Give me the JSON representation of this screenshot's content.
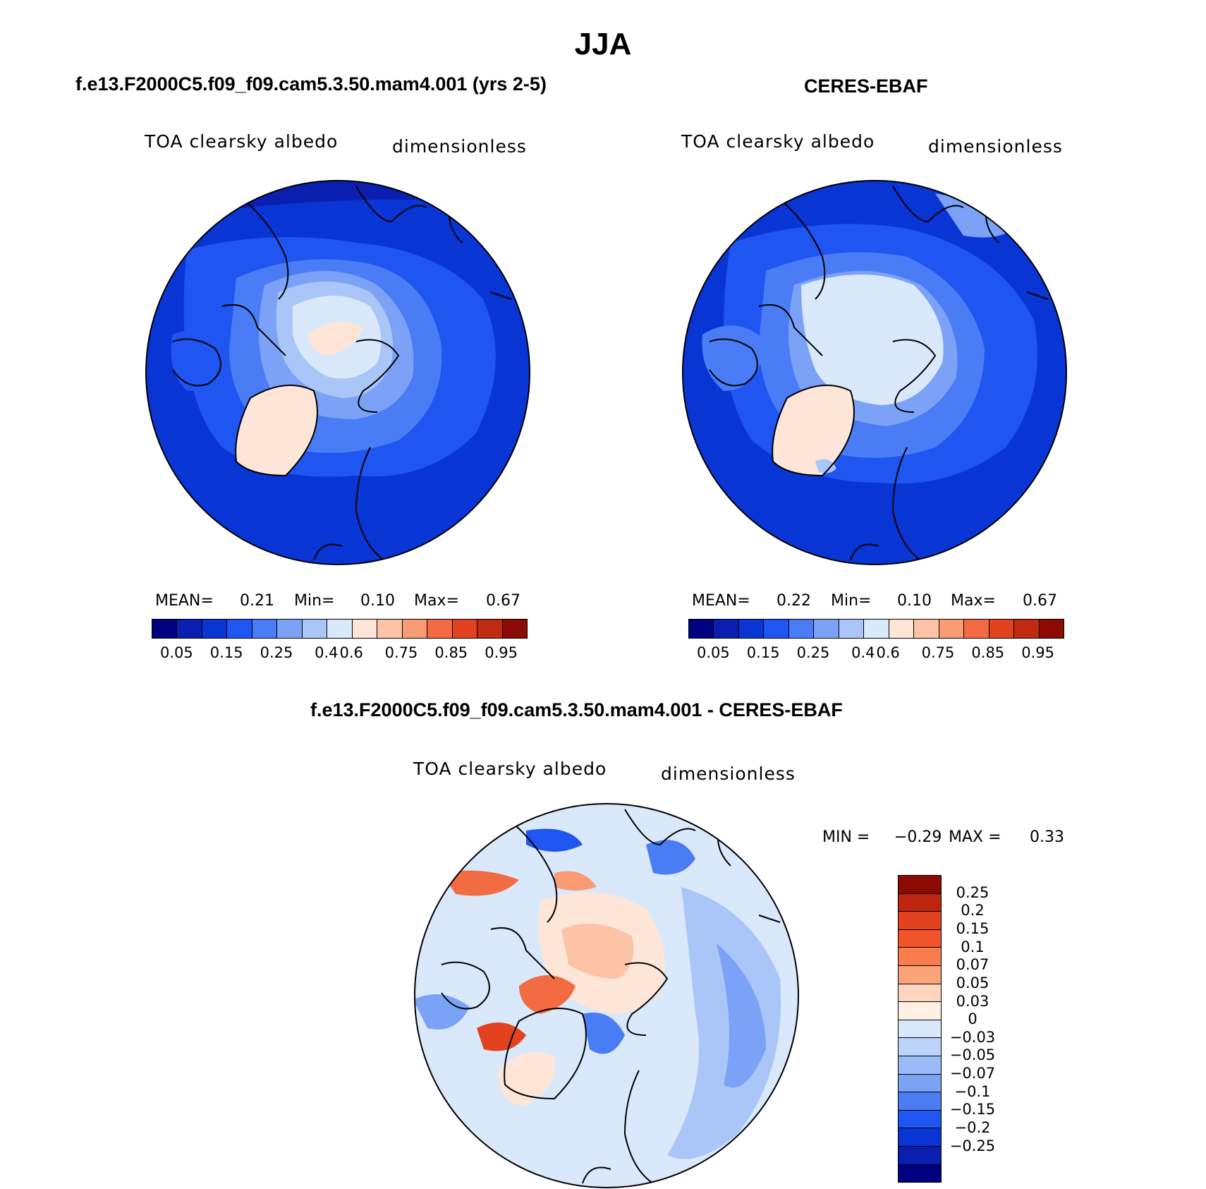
{
  "title": "JJA",
  "panels": [
    {
      "id": "model",
      "title": "f.e13.F2000C5.f09_f09.cam5.3.50.mam4.001 (yrs 2-5)",
      "variable": "TOA clearsky albedo",
      "units": "dimensionless",
      "stats": {
        "mean_label": "MEAN=",
        "mean": "0.21",
        "min_label": "Min=",
        "min": "0.10",
        "max_label": "Max=",
        "max": "0.67"
      }
    },
    {
      "id": "obs",
      "title": "CERES-EBAF",
      "variable": "TOA clearsky albedo",
      "units": "dimensionless",
      "stats": {
        "mean_label": "MEAN=",
        "mean": "0.22",
        "min_label": "Min=",
        "min": "0.10",
        "max_label": "Max=",
        "max": "0.67"
      }
    },
    {
      "id": "diff",
      "title": "f.e13.F2000C5.f09_f09.cam5.3.50.mam4.001 - CERES-EBAF",
      "variable": "TOA clearsky albedo",
      "units": "dimensionless",
      "stats": {
        "min_label": "MIN =",
        "min": "−0.29",
        "max_label": "MAX =",
        "max": "0.33"
      }
    }
  ],
  "colorbars": {
    "absolute": {
      "colors": [
        "#000080",
        "#0a1fb0",
        "#0a35d5",
        "#1f55f0",
        "#4a7cf5",
        "#7ba2f7",
        "#aac6f9",
        "#d9e8fb",
        "#fde6d8",
        "#fcc3a6",
        "#f99c73",
        "#f26b42",
        "#e2421d",
        "#c02a10",
        "#8b0a04"
      ],
      "tick_labels": [
        "0.05",
        "0.15",
        "0.25",
        "0.4",
        "0.6",
        "0.75",
        "0.85",
        "0.95"
      ]
    },
    "difference": {
      "colors_top_to_bottom": [
        "#8b0a04",
        "#bf2610",
        "#e2421d",
        "#f25529",
        "#f97c4c",
        "#fba47a",
        "#fdd4bd",
        "#fef1e4",
        "#d9e8fb",
        "#bcd4fb",
        "#9bbbf8",
        "#7aa2f5",
        "#4b7cf2",
        "#1f55f0",
        "#0a35d5",
        "#0a1fb0",
        "#000080"
      ],
      "tick_labels": [
        "0.25",
        "0.2",
        "0.15",
        "0.1",
        "0.07",
        "0.05",
        "0.03",
        "0",
        "−0.03",
        "−0.05",
        "−0.07",
        "−0.1",
        "−0.15",
        "−0.2",
        "−0.25"
      ]
    }
  },
  "chart_data": [
    {
      "type": "heatmap",
      "title": "f.e13.F2000C5.f09_f09.cam5.3.50.mam4.001 (yrs 2-5)",
      "variable": "TOA clearsky albedo",
      "units": "dimensionless",
      "projection": "north polar stereographic",
      "mean": 0.21,
      "min": 0.1,
      "max": 0.67,
      "levels": [
        0.05,
        0.1,
        0.15,
        0.2,
        0.25,
        0.3,
        0.4,
        0.5,
        0.6,
        0.7,
        0.75,
        0.8,
        0.85,
        0.9,
        0.95
      ]
    },
    {
      "type": "heatmap",
      "title": "CERES-EBAF",
      "variable": "TOA clearsky albedo",
      "units": "dimensionless",
      "projection": "north polar stereographic",
      "mean": 0.22,
      "min": 0.1,
      "max": 0.67,
      "levels": [
        0.05,
        0.1,
        0.15,
        0.2,
        0.25,
        0.3,
        0.4,
        0.5,
        0.6,
        0.7,
        0.75,
        0.8,
        0.85,
        0.9,
        0.95
      ]
    },
    {
      "type": "heatmap",
      "title": "f.e13.F2000C5.f09_f09.cam5.3.50.mam4.001 - CERES-EBAF",
      "variable": "TOA clearsky albedo",
      "units": "dimensionless",
      "projection": "north polar stereographic",
      "min": -0.29,
      "max": 0.33,
      "levels": [
        -0.25,
        -0.2,
        -0.15,
        -0.1,
        -0.07,
        -0.05,
        -0.03,
        0,
        0.03,
        0.05,
        0.07,
        0.1,
        0.15,
        0.2,
        0.25
      ]
    }
  ]
}
